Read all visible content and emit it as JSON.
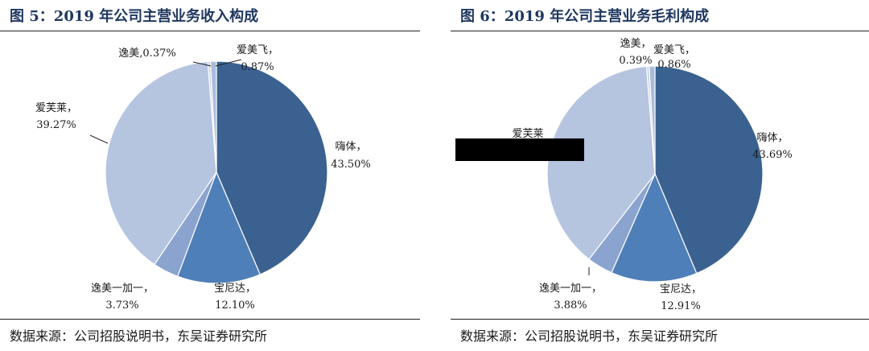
{
  "chart_data": [
    {
      "type": "pie",
      "title": "图 5：2019 年公司主营业务收入构成",
      "source": "数据来源：公司招股说明书，东吴证券研究所",
      "slices": [
        {
          "name": "嗨体",
          "value": 43.5,
          "label": "43.50%",
          "color": "#3a6190"
        },
        {
          "name": "宝尼达",
          "value": 12.1,
          "label": "12.10%",
          "color": "#4f7fb8"
        },
        {
          "name": "逸美一加一",
          "value": 3.73,
          "label": "3.73%",
          "color": "#8aa4cf"
        },
        {
          "name": "爱芙莱",
          "value": 39.27,
          "label": "39.27%",
          "color": "#b5c4df"
        },
        {
          "name": "逸美",
          "value": 0.37,
          "label": "0.37%",
          "color": "#c9d4e8"
        },
        {
          "name": "爱美飞",
          "value": 0.87,
          "label": "0.87%",
          "color": "#a9bcdc"
        }
      ]
    },
    {
      "type": "pie",
      "title": "图 6：2019 年公司主营业务毛利构成",
      "source": "数据来源：公司招股说明书，东吴证券研究所",
      "slices": [
        {
          "name": "嗨体",
          "value": 43.69,
          "label": "43.69%",
          "color": "#3a6190"
        },
        {
          "name": "宝尼达",
          "value": 12.91,
          "label": "12.91%",
          "color": "#4f7fb8"
        },
        {
          "name": "逸美一加一",
          "value": 3.88,
          "label": "3.88%",
          "color": "#8aa4cf"
        },
        {
          "name": "爱芙莱",
          "value": 38.27,
          "label": "",
          "color": "#b5c4df"
        },
        {
          "name": "逸美",
          "value": 0.39,
          "label": "0.39%",
          "color": "#c9d4e8"
        },
        {
          "name": "爱美飞",
          "value": 0.86,
          "label": "0.86%",
          "color": "#a9bcdc"
        }
      ]
    }
  ]
}
